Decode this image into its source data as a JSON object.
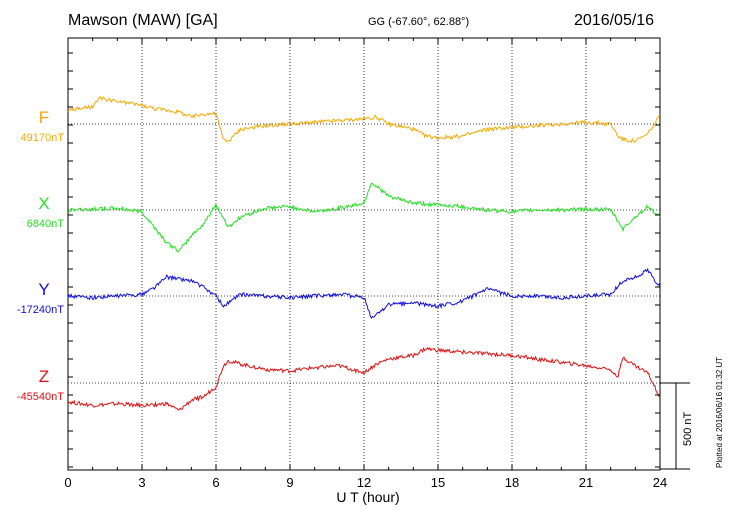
{
  "header": {
    "station": "Mawson (MAW)  [GA]",
    "coords": "GG (-67.60°,  62.88°)",
    "date": "2016/05/16"
  },
  "footer": {
    "plotted": "Plotted at 2016/06/16 01:32 UT"
  },
  "chart_data": {
    "type": "line",
    "title": "Mawson (MAW)  [GA]",
    "xlabel": "U T (hour)",
    "xlim": [
      0,
      24
    ],
    "xticks": [
      0,
      3,
      6,
      9,
      12,
      15,
      18,
      21,
      24
    ],
    "grid": true,
    "scale_bar": {
      "label": "500 nT",
      "value_nT": 500
    },
    "series": [
      {
        "name": "F",
        "baseline_label": "49170nT",
        "baseline_nT": 49170,
        "color": "#f5a800",
        "x": [
          0,
          0.5,
          1,
          1.3,
          2,
          2.5,
          3,
          3.5,
          4,
          4.5,
          5,
          5.5,
          6,
          6.3,
          6.5,
          7,
          8,
          9,
          10,
          11,
          12,
          12.5,
          13,
          14,
          14.5,
          15,
          16,
          17,
          18,
          19,
          20,
          21,
          22,
          22.3,
          22.5,
          23,
          23.5,
          24
        ],
        "y": [
          49250,
          49260,
          49270,
          49320,
          49300,
          49290,
          49280,
          49260,
          49250,
          49240,
          49210,
          49230,
          49230,
          49080,
          49070,
          49140,
          49160,
          49170,
          49180,
          49190,
          49200,
          49210,
          49170,
          49140,
          49100,
          49090,
          49100,
          49140,
          49150,
          49160,
          49170,
          49180,
          49170,
          49100,
          49080,
          49070,
          49110,
          49220
        ]
      },
      {
        "name": "X",
        "baseline_label": "6840nT",
        "baseline_nT": 6840,
        "color": "#22e022",
        "x": [
          0,
          1,
          2,
          3,
          3.5,
          4,
          4.5,
          5,
          5.5,
          6,
          6.5,
          7,
          8,
          9,
          10,
          11,
          12,
          12.3,
          13,
          14,
          15,
          16,
          17,
          18,
          19,
          20,
          21,
          22,
          22.5,
          23,
          23.5,
          24
        ],
        "y": [
          6840,
          6845,
          6850,
          6830,
          6740,
          6650,
          6600,
          6690,
          6760,
          6870,
          6740,
          6800,
          6850,
          6860,
          6830,
          6850,
          6880,
          7000,
          6920,
          6880,
          6870,
          6860,
          6840,
          6830,
          6840,
          6840,
          6845,
          6840,
          6730,
          6800,
          6860,
          6800
        ]
      },
      {
        "name": "Y",
        "baseline_label": "-17240nT",
        "baseline_nT": -17240,
        "color": "#1010e0",
        "x": [
          0,
          1,
          2,
          3,
          3.5,
          4,
          5,
          5.5,
          6,
          6.3,
          7,
          8,
          9,
          10,
          11,
          12,
          12.3,
          13,
          14,
          15,
          16,
          17,
          18,
          19,
          20,
          21,
          22,
          22.5,
          23,
          23.5,
          24
        ],
        "y": [
          -17240,
          -17250,
          -17240,
          -17230,
          -17190,
          -17130,
          -17150,
          -17190,
          -17240,
          -17300,
          -17230,
          -17240,
          -17250,
          -17240,
          -17230,
          -17250,
          -17370,
          -17290,
          -17280,
          -17300,
          -17270,
          -17200,
          -17240,
          -17240,
          -17250,
          -17240,
          -17230,
          -17150,
          -17130,
          -17090,
          -17190
        ]
      },
      {
        "name": "Z",
        "baseline_label": "-45540nT",
        "baseline_nT": -45540,
        "color": "#e01010",
        "x": [
          0,
          1,
          2,
          3,
          4,
          4.5,
          5,
          5.5,
          6,
          6.3,
          6.5,
          7,
          8,
          9,
          10,
          11,
          12,
          12.5,
          13,
          14,
          14.5,
          15,
          16,
          17,
          18,
          19,
          20,
          21,
          22,
          22.3,
          22.5,
          23,
          23.5,
          24
        ],
        "y": [
          -45650,
          -45670,
          -45660,
          -45670,
          -45660,
          -45700,
          -45640,
          -45620,
          -45560,
          -45440,
          -45410,
          -45430,
          -45460,
          -45470,
          -45450,
          -45440,
          -45480,
          -45430,
          -45400,
          -45380,
          -45340,
          -45350,
          -45360,
          -45370,
          -45380,
          -45400,
          -45420,
          -45440,
          -45460,
          -45500,
          -45390,
          -45440,
          -45480,
          -45620
        ]
      }
    ]
  }
}
